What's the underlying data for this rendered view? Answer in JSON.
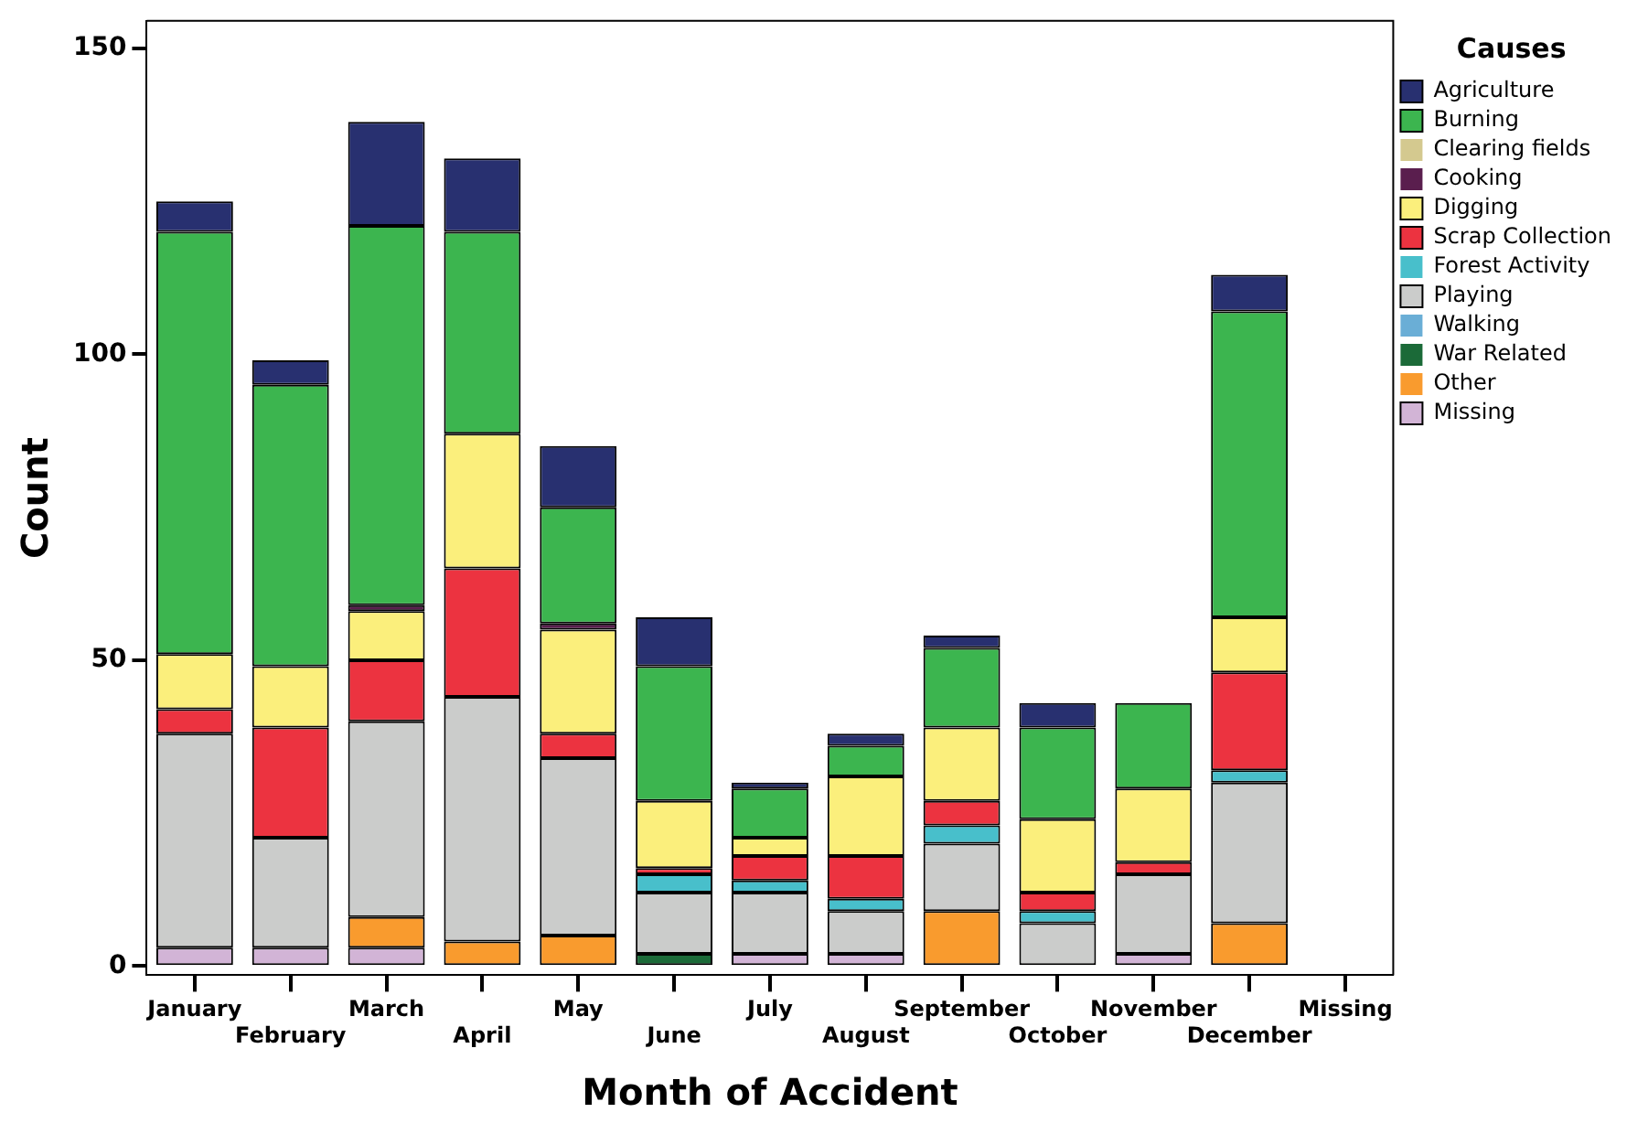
{
  "chart_data": {
    "type": "bar",
    "stacked": true,
    "xlabel": "Month of Accident",
    "ylabel": "Count",
    "legend_title": "Causes",
    "legend": "right",
    "grid": false,
    "categories": [
      "January",
      "February",
      "March",
      "April",
      "May",
      "June",
      "July",
      "August",
      "September",
      "October",
      "November",
      "December",
      "Missing"
    ],
    "ylim": [
      -1.5,
      154.5
    ],
    "yticks": [
      0,
      50,
      100,
      150
    ],
    "series": [
      {
        "name": "Missing",
        "color": "#d2b4d6",
        "values": [
          3,
          3,
          3,
          0,
          0,
          0,
          2,
          2,
          0,
          0,
          2,
          0,
          null
        ]
      },
      {
        "name": "Other",
        "color": "#f99b2e",
        "values": [
          0,
          0,
          5,
          4,
          5,
          0,
          0,
          0,
          9,
          0,
          0,
          7,
          null
        ]
      },
      {
        "name": "War Related",
        "color": "#1b6a38",
        "values": [
          0,
          0,
          0,
          0,
          0,
          2,
          0,
          0,
          0,
          0,
          0,
          0,
          null
        ]
      },
      {
        "name": "Walking",
        "color": "#6aaed6",
        "values": [
          0,
          0,
          0,
          0,
          0,
          0,
          0,
          0,
          0,
          0,
          0,
          0,
          null
        ]
      },
      {
        "name": "Playing",
        "color": "#cbcccb",
        "values": [
          35,
          18,
          32,
          40,
          29,
          10,
          10,
          7,
          11,
          7,
          13,
          23,
          null
        ]
      },
      {
        "name": "Forest Activity",
        "color": "#48bfcb",
        "values": [
          0,
          0,
          0,
          0,
          0,
          3,
          2,
          2,
          3,
          2,
          0,
          2,
          null
        ]
      },
      {
        "name": "Scrap Collection",
        "color": "#ec3340",
        "values": [
          4,
          18,
          10,
          21,
          4,
          1,
          4,
          7,
          4,
          3,
          2,
          16,
          null
        ]
      },
      {
        "name": "Digging",
        "color": "#fbef7c",
        "values": [
          9,
          10,
          8,
          22,
          17,
          11,
          3,
          13,
          12,
          12,
          12,
          9,
          null
        ]
      },
      {
        "name": "Cooking",
        "color": "#5a1e4e",
        "values": [
          0,
          0,
          1,
          0,
          1,
          0,
          0,
          0,
          0,
          0,
          0,
          0,
          null
        ]
      },
      {
        "name": "Clearing fields",
        "color": "#d4c98f",
        "values": [
          0,
          0,
          0,
          0,
          0,
          0,
          0,
          0,
          0,
          0,
          0,
          0,
          null
        ]
      },
      {
        "name": "Burning",
        "color": "#3cb54f",
        "values": [
          69,
          46,
          62,
          33,
          19,
          22,
          8,
          5,
          13,
          15,
          14,
          50,
          null
        ]
      },
      {
        "name": "Agriculture",
        "color": "#283070",
        "values": [
          5,
          4,
          17,
          12,
          10,
          8,
          1,
          2,
          2,
          4,
          0,
          6,
          null
        ]
      }
    ]
  }
}
